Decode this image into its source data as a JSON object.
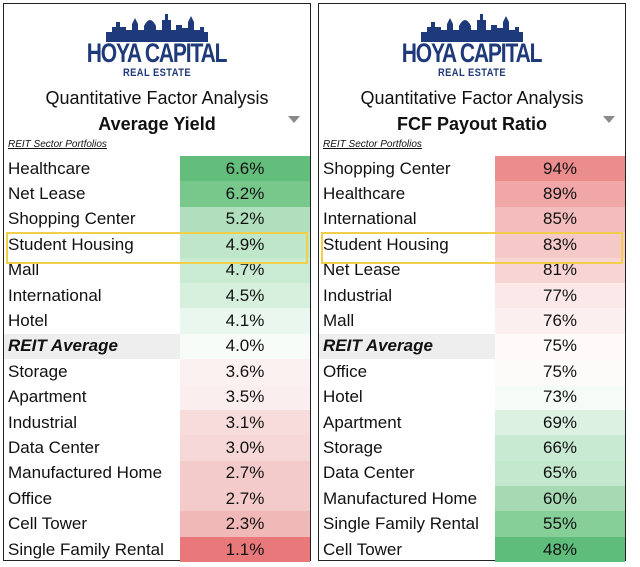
{
  "logo": {
    "main": "HOYA CAPITAL",
    "sub": "REAL ESTATE"
  },
  "panels": {
    "left": {
      "subtitle": "Quantitative Factor Analysis",
      "metric": "Average Yield",
      "section_label": "REIT Sector Portfolios",
      "rows": [
        {
          "name": "Healthcare",
          "value": "6.6%",
          "color": "#63be7b"
        },
        {
          "name": "Net Lease",
          "value": "6.2%",
          "color": "#78c88c"
        },
        {
          "name": "Shopping Center",
          "value": "5.2%",
          "color": "#b1dfbd"
        },
        {
          "name": "Student Housing",
          "value": "4.9%",
          "color": "#bfe6c9"
        },
        {
          "name": "Mall",
          "value": "4.7%",
          "color": "#caebd3"
        },
        {
          "name": "International",
          "value": "4.5%",
          "color": "#d6f0dd"
        },
        {
          "name": "Hotel",
          "value": "4.1%",
          "color": "#eaf7ee"
        },
        {
          "name": "REIT Average",
          "value": "4.0%",
          "color": "#f8fcf9",
          "average": true
        },
        {
          "name": "Storage",
          "value": "3.6%",
          "color": "#fcf1f1"
        },
        {
          "name": "Apartment",
          "value": "3.5%",
          "color": "#fbeeee"
        },
        {
          "name": "Industrial",
          "value": "3.1%",
          "color": "#f8dcdc"
        },
        {
          "name": "Data Center",
          "value": "3.0%",
          "color": "#f7d8d8"
        },
        {
          "name": "Manufactured Home",
          "value": "2.7%",
          "color": "#f4cbcb"
        },
        {
          "name": "Office",
          "value": "2.7%",
          "color": "#f4cbcb"
        },
        {
          "name": "Cell Tower",
          "value": "2.3%",
          "color": "#f1b8b8"
        },
        {
          "name": "Single Family Rental",
          "value": "1.1%",
          "color": "#e8787a"
        }
      ]
    },
    "right": {
      "subtitle": "Quantitative Factor Analysis",
      "metric": "FCF Payout Ratio",
      "section_label": "REIT Sector Portfolios",
      "rows": [
        {
          "name": "Shopping Center",
          "value": "94%",
          "color": "#ec8d8d"
        },
        {
          "name": "Healthcare",
          "value": "89%",
          "color": "#f1a7a7"
        },
        {
          "name": "International",
          "value": "85%",
          "color": "#f4bdbd"
        },
        {
          "name": "Student Housing",
          "value": "83%",
          "color": "#f6c9c9"
        },
        {
          "name": "Net Lease",
          "value": "81%",
          "color": "#f8d5d5"
        },
        {
          "name": "Industrial",
          "value": "77%",
          "color": "#fbe8e8"
        },
        {
          "name": "Mall",
          "value": "76%",
          "color": "#fcefef"
        },
        {
          "name": "REIT Average",
          "value": "75%",
          "color": "#fefafa",
          "average": true
        },
        {
          "name": "Office",
          "value": "75%",
          "color": "#fdfafa"
        },
        {
          "name": "Hotel",
          "value": "73%",
          "color": "#f5fbf6"
        },
        {
          "name": "Apartment",
          "value": "69%",
          "color": "#dcf1e2"
        },
        {
          "name": "Storage",
          "value": "66%",
          "color": "#c9ead2"
        },
        {
          "name": "Data Center",
          "value": "65%",
          "color": "#c3e8cd"
        },
        {
          "name": "Manufactured Home",
          "value": "60%",
          "color": "#a5dab3"
        },
        {
          "name": "Single Family Rental",
          "value": "55%",
          "color": "#87cf99"
        },
        {
          "name": "Cell Tower",
          "value": "48%",
          "color": "#5fbd7b"
        }
      ]
    }
  }
}
